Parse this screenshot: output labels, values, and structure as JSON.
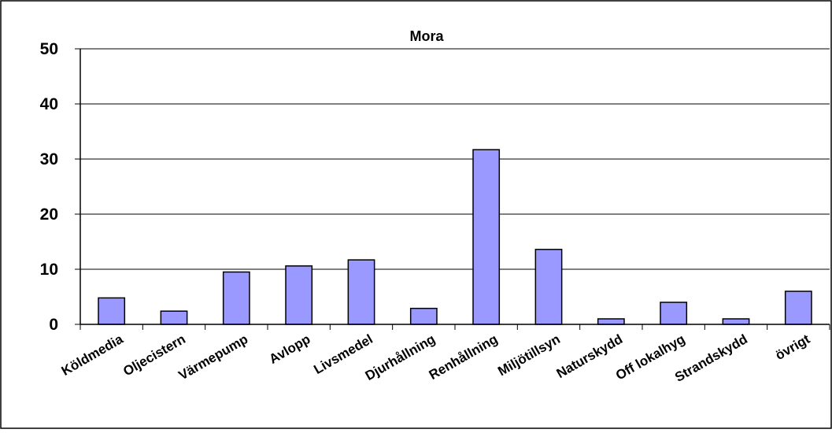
{
  "chart_data": {
    "type": "bar",
    "title": "Mora",
    "xlabel": "",
    "ylabel": "",
    "categories": [
      "Köldmedia",
      "Oljecistern",
      "Värmepump",
      "Avlopp",
      "Livsmedel",
      "Djurhållning",
      "Renhållning",
      "Miljötillsyn",
      "Naturskydd",
      "Off lokalhyg",
      "Strandskydd",
      "övrigt"
    ],
    "values": [
      4.8,
      2.4,
      9.5,
      10.6,
      11.7,
      2.9,
      31.7,
      13.6,
      1.0,
      4.0,
      1.0,
      6.0
    ],
    "ylim": [
      0,
      50
    ],
    "yticks": [
      "0",
      "10",
      "20",
      "30",
      "40",
      "50"
    ],
    "grid": true,
    "legend": "none",
    "colors": {
      "bar_fill": "#9999ff",
      "bar_stroke": "#000000",
      "gridline": "#000000",
      "border": "#000000"
    }
  }
}
